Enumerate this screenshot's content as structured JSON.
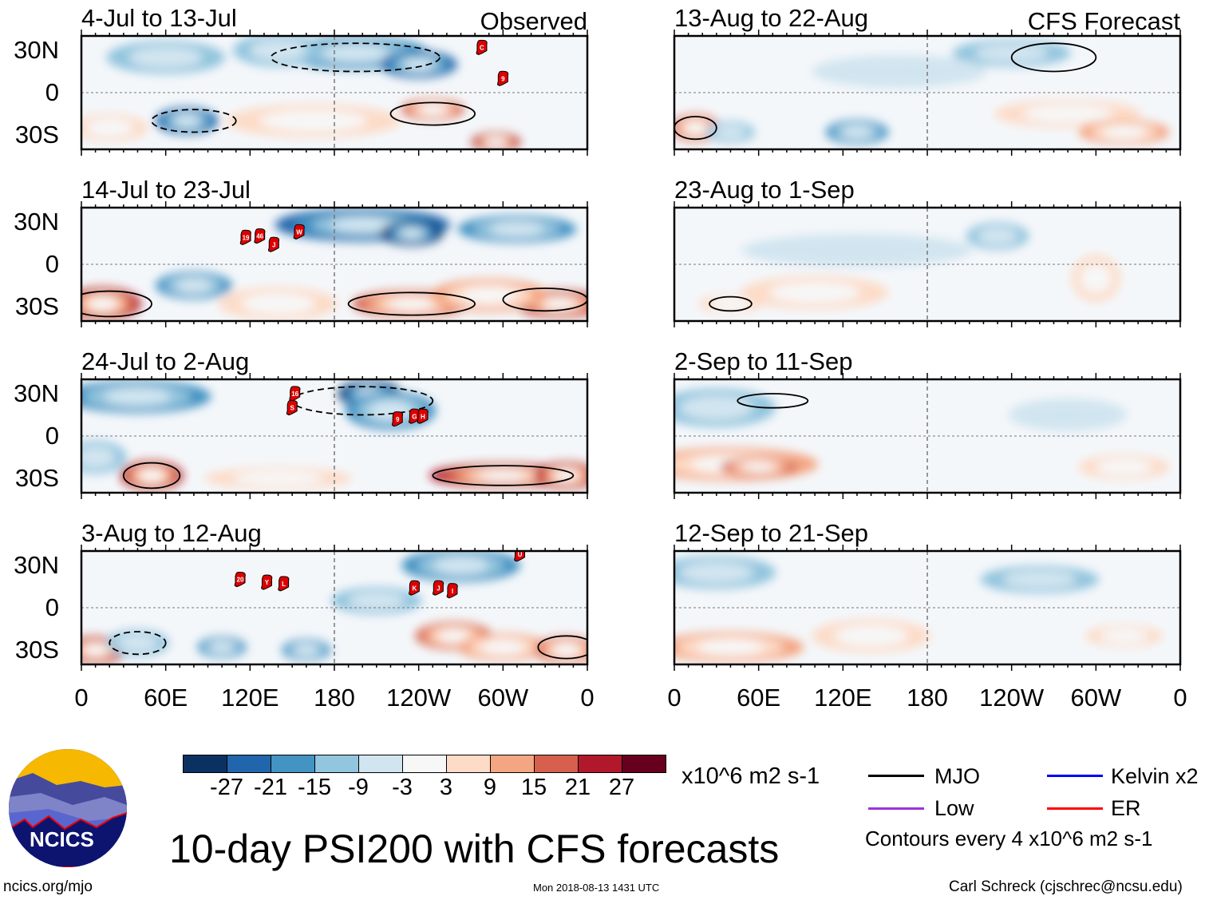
{
  "title": "10-day PSI200 with CFS forecasts",
  "url": "ncics.org/mjo",
  "timestamp": "Mon 2018-08-13 1431 UTC",
  "author": "Carl Schreck (cjschrec@ncsu.edu)",
  "logo_text": "NCICS",
  "units": "x10^6 m2 s-1",
  "contour_note": "Contours every 4 x10^6 m2 s-1",
  "legend": [
    {
      "label": "MJO",
      "color": "#000000"
    },
    {
      "label": "Kelvin x2",
      "color": "#0000ff"
    },
    {
      "label": "Low",
      "color": "#9933dd"
    },
    {
      "label": "ER",
      "color": "#ff0000"
    }
  ],
  "column_labels": {
    "left": "Observed",
    "right": "CFS Forecast"
  },
  "y_ticks": [
    "30N",
    "0",
    "30S"
  ],
  "x_ticks": [
    "0",
    "60E",
    "120E",
    "180",
    "120W",
    "60W",
    "0"
  ],
  "chart_data": {
    "type": "heatmap",
    "title": "10-day PSI200 with CFS forecasts",
    "colorbar": {
      "levels": [
        "-27",
        "-21",
        "-15",
        "-9",
        "-3",
        "3",
        "9",
        "15",
        "21",
        "27"
      ],
      "colors": [
        "#0a3162",
        "#2166ac",
        "#4393c3",
        "#92c5de",
        "#d1e5f0",
        "#f7f7f7",
        "#fddbc7",
        "#f4a582",
        "#d6604d",
        "#b2182b",
        "#67001f"
      ]
    },
    "lon_range": [
      0,
      360
    ],
    "lat_range": [
      -40,
      40
    ],
    "panels": [
      {
        "title": "4-Jul to 13-Jul",
        "column": "left",
        "row": 0,
        "anomalies": [
          [
            195,
            28,
            -15,
            50,
            10
          ],
          [
            240,
            20,
            -21,
            25,
            8
          ],
          [
            140,
            30,
            -9,
            30,
            10
          ],
          [
            75,
            -20,
            -21,
            20,
            8
          ],
          [
            20,
            -25,
            9,
            25,
            8
          ],
          [
            250,
            -12,
            21,
            20,
            6
          ],
          [
            295,
            -35,
            27,
            15,
            5
          ],
          [
            165,
            -20,
            9,
            60,
            10
          ],
          [
            60,
            25,
            -9,
            40,
            10
          ]
        ],
        "contours": [
          [
            250,
            -15,
            1,
            30,
            8
          ],
          [
            195,
            25,
            -1,
            60,
            10
          ],
          [
            80,
            -20,
            -1,
            30,
            8
          ]
        ],
        "storms": [
          [
            "C",
            285,
            32
          ],
          [
            "9",
            300,
            10
          ]
        ]
      },
      {
        "title": "14-Jul to 23-Jul",
        "column": "left",
        "row": 1,
        "anomalies": [
          [
            200,
            28,
            -21,
            60,
            10
          ],
          [
            235,
            22,
            -27,
            20,
            7
          ],
          [
            310,
            25,
            -15,
            40,
            8
          ],
          [
            15,
            -28,
            27,
            25,
            10
          ],
          [
            80,
            -15,
            -15,
            25,
            8
          ],
          [
            235,
            -28,
            21,
            40,
            8
          ],
          [
            340,
            -28,
            27,
            30,
            8
          ],
          [
            140,
            -28,
            9,
            40,
            10
          ],
          [
            290,
            -22,
            15,
            40,
            10
          ]
        ],
        "contours": [
          [
            20,
            -28,
            1,
            30,
            9
          ],
          [
            235,
            -28,
            1,
            45,
            8
          ],
          [
            330,
            -25,
            1,
            30,
            8
          ]
        ],
        "storms": [
          [
            "19",
            117,
            19
          ],
          [
            "46",
            127,
            20
          ],
          [
            "J",
            137,
            14
          ],
          [
            "W",
            155,
            23
          ]
        ]
      },
      {
        "title": "24-Jul to 2-Aug",
        "column": "left",
        "row": 2,
        "anomalies": [
          [
            40,
            28,
            -15,
            50,
            10
          ],
          [
            205,
            30,
            -27,
            20,
            8
          ],
          [
            220,
            18,
            -15,
            30,
            12
          ],
          [
            50,
            -28,
            27,
            20,
            9
          ],
          [
            300,
            -28,
            27,
            50,
            7
          ],
          [
            345,
            -28,
            27,
            20,
            8
          ],
          [
            140,
            -30,
            9,
            50,
            6
          ],
          [
            10,
            -15,
            -9,
            20,
            10
          ]
        ],
        "contours": [
          [
            50,
            -28,
            1,
            20,
            9
          ],
          [
            300,
            -28,
            1,
            50,
            7
          ],
          [
            200,
            25,
            -1,
            50,
            10
          ]
        ],
        "storms": [
          [
            "16",
            152,
            30
          ],
          [
            "S",
            150,
            20
          ],
          [
            "9",
            225,
            12
          ],
          [
            "G",
            237,
            14
          ],
          [
            "H",
            243,
            14
          ]
        ]
      },
      {
        "title": "3-Aug to 12-Aug",
        "column": "left",
        "row": 3,
        "anomalies": [
          [
            10,
            -30,
            27,
            20,
            8
          ],
          [
            40,
            -25,
            -9,
            20,
            8
          ],
          [
            100,
            -28,
            -15,
            15,
            6
          ],
          [
            160,
            -30,
            -15,
            15,
            6
          ],
          [
            265,
            -20,
            21,
            25,
            8
          ],
          [
            300,
            -28,
            15,
            30,
            8
          ],
          [
            345,
            -30,
            21,
            20,
            8
          ],
          [
            270,
            30,
            -15,
            40,
            10
          ],
          [
            210,
            5,
            -9,
            30,
            8
          ]
        ],
        "contours": [
          [
            40,
            -25,
            -1,
            20,
            8
          ],
          [
            345,
            -28,
            1,
            20,
            8
          ]
        ],
        "storms": [
          [
            "20",
            113,
            20
          ],
          [
            "Y",
            132,
            18
          ],
          [
            "L",
            144,
            17
          ],
          [
            "K",
            237,
            14
          ],
          [
            "J",
            254,
            14
          ],
          [
            "I",
            264,
            12
          ],
          [
            "U",
            312,
            38
          ]
        ]
      },
      {
        "title": "13-Aug to 22-Aug",
        "column": "right",
        "row": 0,
        "anomalies": [
          [
            15,
            -25,
            21,
            15,
            8
          ],
          [
            40,
            -28,
            -9,
            15,
            6
          ],
          [
            130,
            -28,
            -15,
            20,
            7
          ],
          [
            280,
            -15,
            9,
            50,
            8
          ],
          [
            320,
            -28,
            15,
            30,
            7
          ],
          [
            240,
            28,
            -9,
            40,
            8
          ],
          [
            160,
            15,
            -3,
            60,
            10
          ]
        ],
        "contours": [
          [
            15,
            -25,
            1,
            15,
            8
          ],
          [
            270,
            25,
            1,
            30,
            10
          ]
        ],
        "storms": []
      },
      {
        "title": "23-Aug to 1-Sep",
        "column": "right",
        "row": 1,
        "anomalies": [
          [
            230,
            20,
            -9,
            20,
            8
          ],
          [
            300,
            -10,
            9,
            15,
            15
          ],
          [
            100,
            -20,
            9,
            50,
            10
          ],
          [
            40,
            -28,
            9,
            20,
            5
          ],
          [
            130,
            10,
            -3,
            80,
            10
          ]
        ],
        "contours": [
          [
            40,
            -28,
            1,
            15,
            5
          ]
        ],
        "storms": []
      },
      {
        "title": "2-Sep to 11-Sep",
        "column": "right",
        "row": 2,
        "anomalies": [
          [
            40,
            -20,
            15,
            60,
            10
          ],
          [
            60,
            -22,
            21,
            25,
            5
          ],
          [
            320,
            -22,
            9,
            30,
            7
          ],
          [
            30,
            20,
            -9,
            40,
            12
          ],
          [
            280,
            15,
            -3,
            40,
            10
          ]
        ],
        "contours": [
          [
            70,
            25,
            1,
            25,
            5
          ]
        ],
        "storms": []
      },
      {
        "title": "12-Sep to 21-Sep",
        "column": "right",
        "row": 3,
        "anomalies": [
          [
            40,
            -28,
            15,
            50,
            9
          ],
          [
            140,
            -20,
            9,
            40,
            10
          ],
          [
            320,
            -20,
            9,
            25,
            6
          ],
          [
            30,
            25,
            -9,
            40,
            10
          ],
          [
            260,
            20,
            -9,
            40,
            8
          ]
        ],
        "contours": [],
        "storms": []
      }
    ]
  }
}
